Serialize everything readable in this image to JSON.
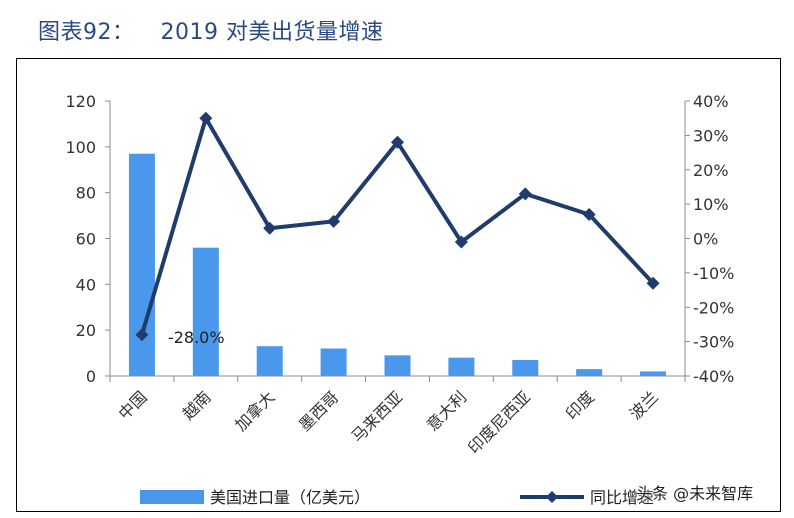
{
  "header": {
    "figure_number": "图表92：",
    "title": "2019 对美出货量增速"
  },
  "watermark": "头条 @未来智库",
  "chart_data": {
    "type": "bar",
    "title": "2019 对美出货量增速",
    "categories": [
      "中国",
      "越南",
      "加拿大",
      "墨西哥",
      "马来西亚",
      "意大利",
      "印度尼西亚",
      "印度",
      "波兰"
    ],
    "series": [
      {
        "name": "美国进口量（亿美元）",
        "type": "bar",
        "axis": "left",
        "values": [
          97,
          56,
          13,
          12,
          9,
          8,
          7,
          3,
          2
        ]
      },
      {
        "name": "同比增速",
        "type": "line",
        "axis": "right",
        "values": [
          -28,
          35,
          3,
          5,
          28,
          -1,
          13,
          7,
          -13
        ]
      }
    ],
    "y_left": {
      "min": 0,
      "max": 120,
      "ticks": [
        0,
        20,
        40,
        60,
        80,
        100,
        120
      ]
    },
    "y_right": {
      "min": -40,
      "max": 40,
      "ticks": [
        "-40%",
        "-30%",
        "-20%",
        "-10%",
        "0%",
        "10%",
        "20%",
        "30%",
        "40%"
      ]
    },
    "annotation": {
      "text": "-28.0%",
      "index": 0
    },
    "grid": false,
    "legend": "bottom",
    "colors": {
      "bar": "#4a98ec",
      "line": "#1f3c6c",
      "title": "#2a4a86"
    }
  }
}
